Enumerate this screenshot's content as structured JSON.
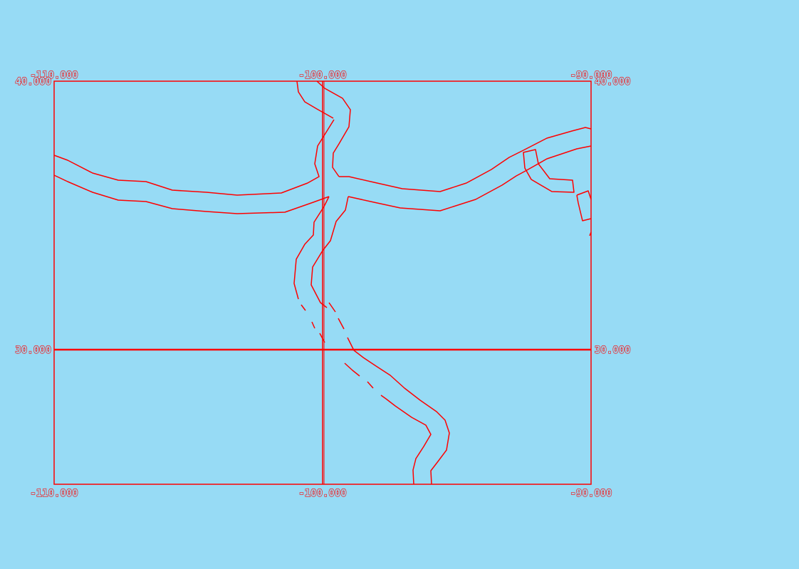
{
  "colors": {
    "background": "#97dbf5",
    "line": "#ff0000"
  },
  "map": {
    "lon_min": -110,
    "lon_max": -90,
    "lat_min": 25,
    "lat_max": 40,
    "graticule_lons": [
      -100
    ],
    "graticule_lats": [
      30
    ]
  },
  "labels": {
    "top_lon_left": "-110.000",
    "top_lon_mid": "-100.000",
    "top_lon_right": "-90.000",
    "bottom_lon_left": "-110.000",
    "bottom_lon_mid": "-100.000",
    "bottom_lon_right": "-90.000",
    "left_lat_top": "40.000",
    "left_lat_mid": "30.000",
    "right_lat_top": "40.000",
    "right_lat_mid": "30.000"
  }
}
